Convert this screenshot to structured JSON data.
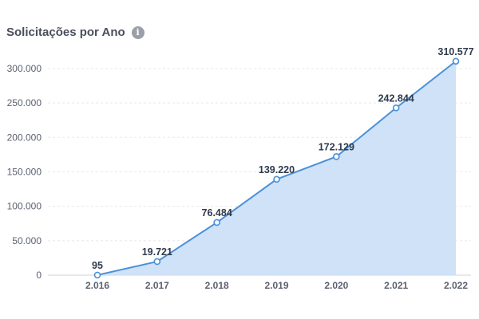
{
  "header": {
    "title": "Solicitações por Ano",
    "info_icon": "info-icon"
  },
  "colors": {
    "line": "#4a90d9",
    "area": "#cfe2f7",
    "grid": "#e6e8ec",
    "point_fill": "#ffffff"
  },
  "chart_data": {
    "type": "area",
    "title": "Solicitações por Ano",
    "categories": [
      "2.016",
      "2.017",
      "2.018",
      "2.019",
      "2.020",
      "2.021",
      "2.022"
    ],
    "values": [
      95,
      19721,
      76484,
      139220,
      172129,
      242844,
      310577
    ],
    "data_labels": [
      "95",
      "19.721",
      "76.484",
      "139.220",
      "172.129",
      "242.844",
      "310.577"
    ],
    "y_ticks": [
      0,
      50000,
      100000,
      150000,
      200000,
      250000,
      300000
    ],
    "y_tick_labels": [
      "0",
      "50.000",
      "100.000",
      "150.000",
      "200.000",
      "250.000",
      "300.000"
    ],
    "ylim": [
      0,
      330000
    ],
    "grid": true,
    "grid_style": "dashed-horizontal",
    "legend": "none"
  }
}
